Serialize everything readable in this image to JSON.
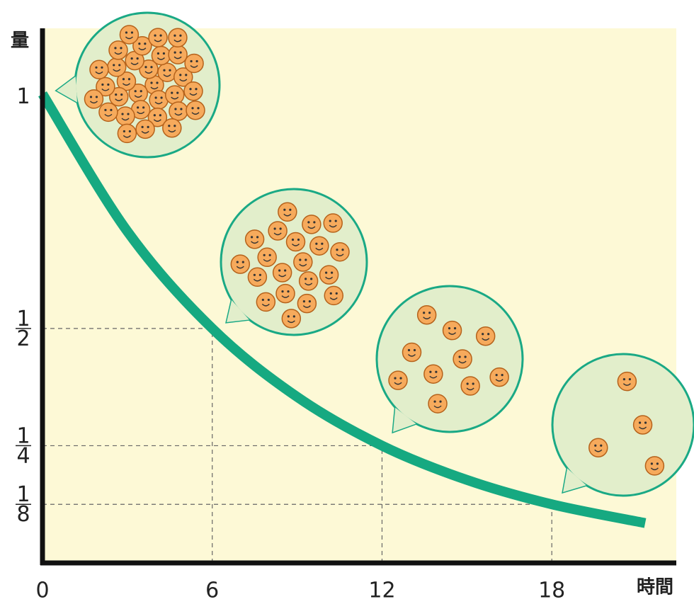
{
  "chart_data": {
    "type": "line",
    "y_axis_label": "量",
    "x_axis_label": "時間",
    "x": [
      0,
      3,
      6,
      9,
      12,
      15,
      18,
      21.3
    ],
    "values": [
      1,
      0.707,
      0.5,
      0.354,
      0.25,
      0.177,
      0.125,
      0.085
    ],
    "color": "#16a981",
    "xlim": [
      0,
      22.4
    ],
    "ylim": [
      0,
      1.14
    ],
    "xticks": [
      0,
      6,
      12,
      18
    ],
    "yticks": [
      1,
      {
        "value": 0.5,
        "label": "1/2"
      },
      {
        "value": 0.25,
        "label": "1/4"
      },
      {
        "value": 0.125,
        "label": "1/8"
      }
    ]
  }
}
